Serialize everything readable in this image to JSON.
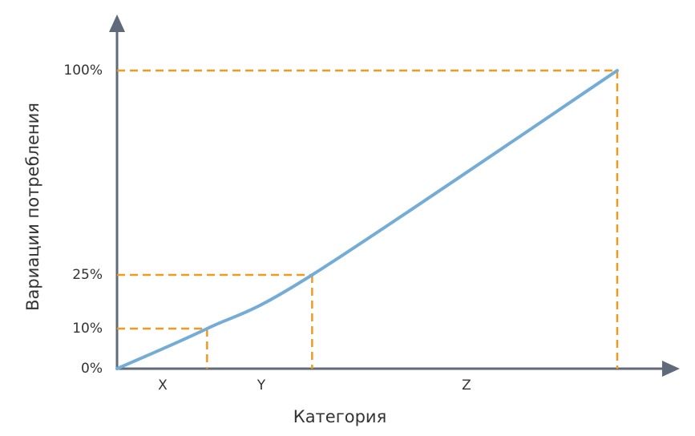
{
  "chart_data": {
    "type": "line",
    "xlabel": "Категория",
    "ylabel": "Вариации потребления",
    "y_ticks": [
      "0%",
      "10%",
      "25%",
      "100%"
    ],
    "categories": [
      "X",
      "Y",
      "Z"
    ],
    "series": [
      {
        "x": [
          0,
          0.18,
          0.39,
          1.0
        ],
        "values": [
          0,
          10,
          25,
          100
        ]
      }
    ],
    "markers": [
      {
        "x": 0.18,
        "y": 10
      },
      {
        "x": 0.39,
        "y": 25
      },
      {
        "x": 1.0,
        "y": 100
      }
    ],
    "ylim": [
      0,
      100
    ],
    "grid": false,
    "colors": {
      "curve": "#74acd8",
      "guides": "#f39a1e",
      "axes": "#5f6b7a"
    }
  }
}
